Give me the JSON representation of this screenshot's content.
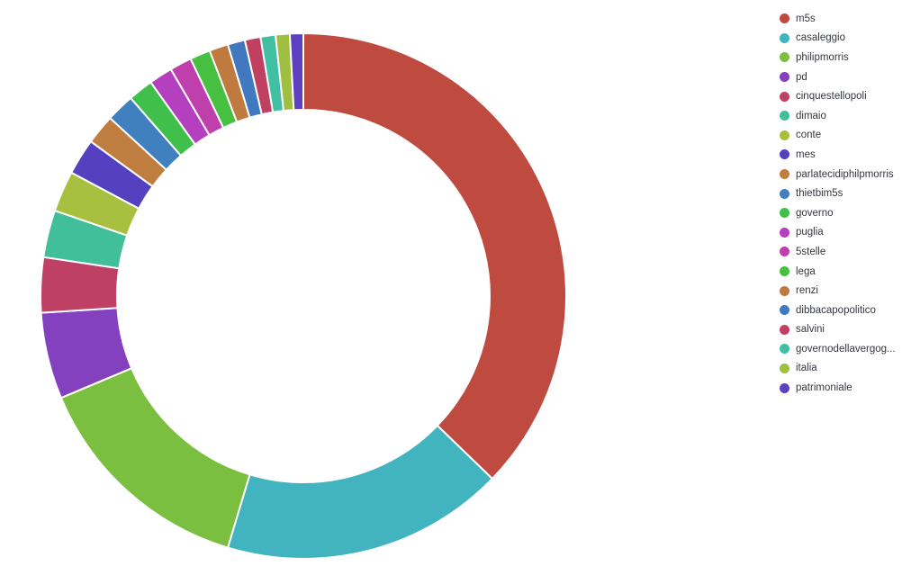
{
  "chart_data": {
    "type": "pie",
    "donut": true,
    "legend_position": "right",
    "series": [
      {
        "name": "m5s",
        "value": 38.5,
        "color": "#bf4b40"
      },
      {
        "name": "casaleggio",
        "value": 18.0,
        "color": "#42b4c0"
      },
      {
        "name": "philipmorris",
        "value": 14.5,
        "color": "#7bbf40"
      },
      {
        "name": "pd",
        "value": 5.5,
        "color": "#8340bf"
      },
      {
        "name": "cinquestellopoli",
        "value": 3.5,
        "color": "#bf4065"
      },
      {
        "name": "dimaio",
        "value": 3.0,
        "color": "#40bf9a"
      },
      {
        "name": "conte",
        "value": 2.6,
        "color": "#a8bf40"
      },
      {
        "name": "mes",
        "value": 2.3,
        "color": "#5540bf"
      },
      {
        "name": "parlatecidiphilpmorris",
        "value": 1.9,
        "color": "#bf7e40"
      },
      {
        "name": "thietbim5s",
        "value": 1.8,
        "color": "#4080bf"
      },
      {
        "name": "governo",
        "value": 1.6,
        "color": "#40bf4b"
      },
      {
        "name": "puglia",
        "value": 1.5,
        "color": "#b440bf"
      },
      {
        "name": "5stelle",
        "value": 1.4,
        "color": "#bf40ad"
      },
      {
        "name": "lega",
        "value": 1.3,
        "color": "#47bf40"
      },
      {
        "name": "renzi",
        "value": 1.2,
        "color": "#bf7a40"
      },
      {
        "name": "dibbacapopolitico",
        "value": 1.1,
        "color": "#4079bf"
      },
      {
        "name": "salvini",
        "value": 1.0,
        "color": "#bf4060"
      },
      {
        "name": "governodellavergognaitaliana",
        "value": 0.95,
        "color": "#40bfa2",
        "legend_label": "governodellavergog..."
      },
      {
        "name": "italia",
        "value": 0.9,
        "color": "#9fbf40"
      },
      {
        "name": "patrimoniale",
        "value": 0.85,
        "color": "#5d40bf"
      }
    ]
  }
}
